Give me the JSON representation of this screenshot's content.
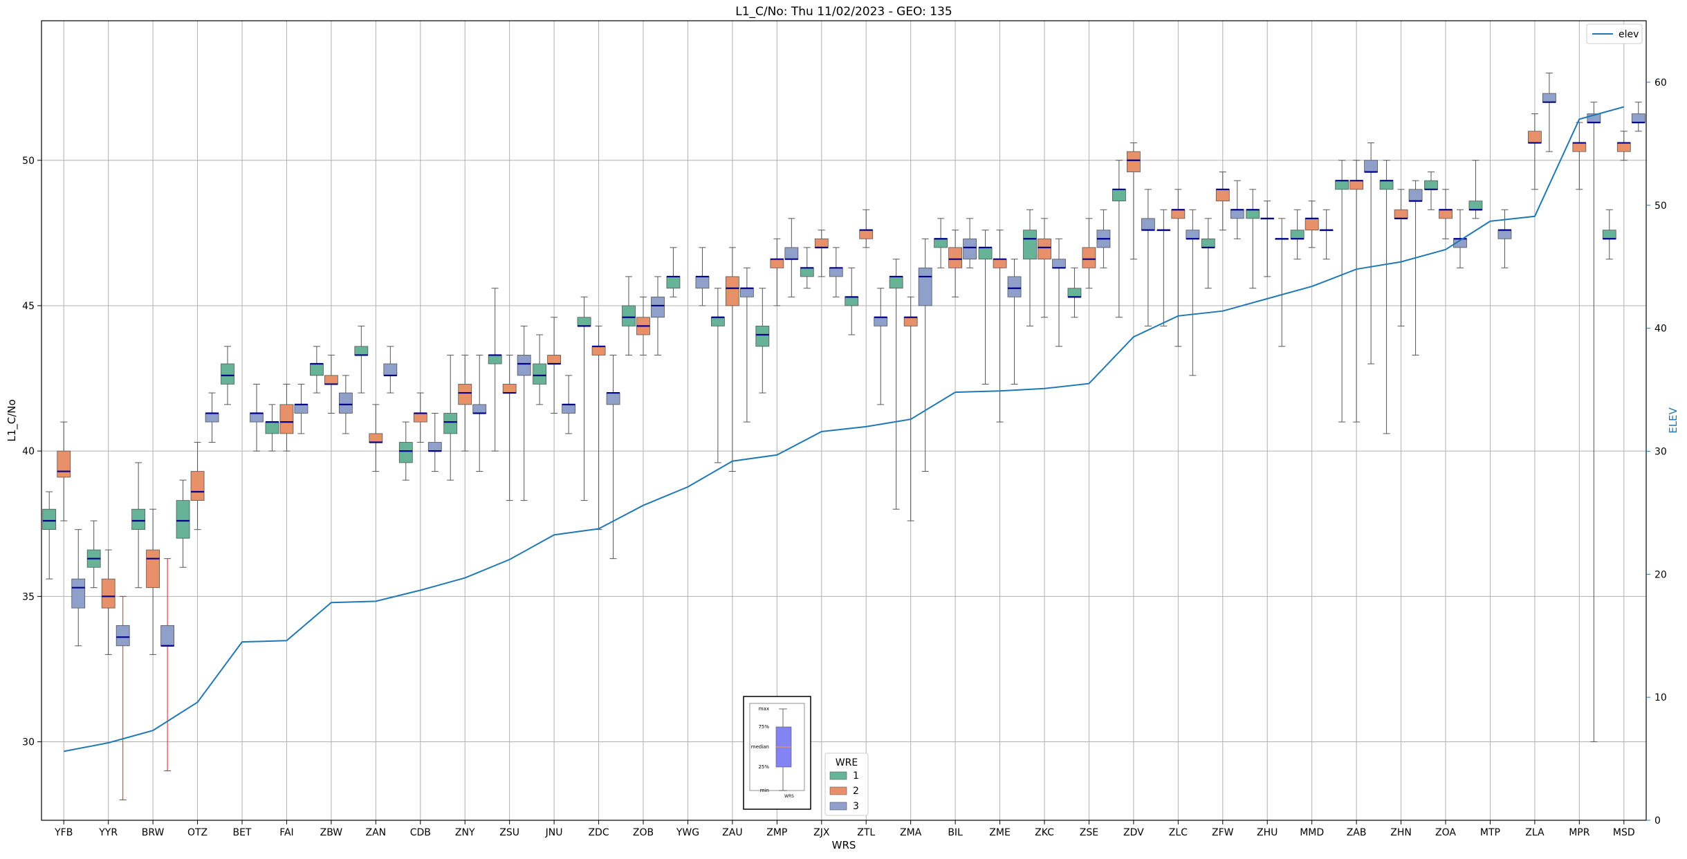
{
  "chart_data": {
    "type": "box",
    "title": "L1_C/No: Thu 11/02/2023 - GEO: 135",
    "xlabel": "WRS",
    "ylabel": "L1_C/No",
    "ylabel_right": "ELEV",
    "ylim": [
      27.3,
      54.8
    ],
    "ylim_right": [
      0,
      65
    ],
    "yticks": [
      30,
      35,
      40,
      45,
      50
    ],
    "yticks_right": [
      0,
      10,
      20,
      30,
      40,
      50,
      60
    ],
    "grid": true,
    "categories": [
      "YFB",
      "YYR",
      "BRW",
      "OTZ",
      "BET",
      "FAI",
      "ZBW",
      "ZAN",
      "CDB",
      "ZNY",
      "ZSU",
      "JNU",
      "ZDC",
      "ZOB",
      "YWG",
      "ZAU",
      "ZMP",
      "ZJX",
      "ZTL",
      "ZMA",
      "BIL",
      "ZME",
      "ZKC",
      "ZSE",
      "ZDV",
      "ZLC",
      "ZFW",
      "ZHU",
      "MMD",
      "ZAB",
      "ZHN",
      "ZOA",
      "MTP",
      "ZLA",
      "MPR",
      "MSD"
    ],
    "legend_box": {
      "title": "WRE",
      "placement": "bottom-center",
      "entries": [
        {
          "label": "1",
          "color": "#66b398"
        },
        {
          "label": "2",
          "color": "#e8906a"
        },
        {
          "label": "3",
          "color": "#8e9fc9"
        }
      ]
    },
    "legend_line": {
      "label": "elev",
      "color": "#1f77b4",
      "placement": "top-right"
    },
    "key_labels": [
      "max",
      "75%",
      "median",
      "25%",
      "min",
      "WRS"
    ],
    "boxes": [
      {
        "wrs": "YFB",
        "wre": 1,
        "min": 35.6,
        "q1": 37.3,
        "median": 37.6,
        "q3": 38.0,
        "max": 38.6
      },
      {
        "wrs": "YFB",
        "wre": 2,
        "min": 37.6,
        "q1": 39.1,
        "median": 39.3,
        "q3": 40.0,
        "max": 41.0
      },
      {
        "wrs": "YFB",
        "wre": 3,
        "min": 33.3,
        "q1": 34.6,
        "median": 35.3,
        "q3": 35.6,
        "max": 37.3
      },
      {
        "wrs": "YYR",
        "wre": 1,
        "min": 35.3,
        "q1": 36.0,
        "median": 36.3,
        "q3": 36.6,
        "max": 37.6
      },
      {
        "wrs": "YYR",
        "wre": 2,
        "min": 33.0,
        "q1": 34.6,
        "median": 35.0,
        "q3": 35.6,
        "max": 36.6
      },
      {
        "wrs": "YYR",
        "wre": 3,
        "min": 28.0,
        "q1": 33.3,
        "median": 33.6,
        "q3": 34.0,
        "max": 35.0
      },
      {
        "wrs": "BRW",
        "wre": 1,
        "min": 35.3,
        "q1": 37.3,
        "median": 37.6,
        "q3": 38.0,
        "max": 39.6
      },
      {
        "wrs": "BRW",
        "wre": 2,
        "min": 33.0,
        "q1": 35.3,
        "median": 36.3,
        "q3": 36.6,
        "max": 38.0
      },
      {
        "wrs": "BRW",
        "wre": 3,
        "min": 29.0,
        "q1": 33.3,
        "median": 33.3,
        "q3": 34.0,
        "max": 36.3
      },
      {
        "wrs": "OTZ",
        "wre": 1,
        "min": 36.0,
        "q1": 37.0,
        "median": 37.6,
        "q3": 38.3,
        "max": 39.0
      },
      {
        "wrs": "OTZ",
        "wre": 2,
        "min": 37.3,
        "q1": 38.3,
        "median": 38.6,
        "q3": 39.3,
        "max": 40.3
      },
      {
        "wrs": "OTZ",
        "wre": 3,
        "min": 40.3,
        "q1": 41.0,
        "median": 41.3,
        "q3": 41.3,
        "max": 42.0
      },
      {
        "wrs": "BET",
        "wre": 1,
        "min": 41.6,
        "q1": 42.3,
        "median": 42.6,
        "q3": 43.0,
        "max": 43.6
      },
      {
        "wrs": "BET",
        "wre": 3,
        "min": 40.0,
        "q1": 41.0,
        "median": 41.3,
        "q3": 41.3,
        "max": 42.3
      },
      {
        "wrs": "FAI",
        "wre": 1,
        "min": 40.0,
        "q1": 40.6,
        "median": 41.0,
        "q3": 41.0,
        "max": 41.6
      },
      {
        "wrs": "FAI",
        "wre": 2,
        "min": 40.0,
        "q1": 40.6,
        "median": 41.0,
        "q3": 41.6,
        "max": 42.3
      },
      {
        "wrs": "FAI",
        "wre": 3,
        "min": 40.6,
        "q1": 41.3,
        "median": 41.6,
        "q3": 41.6,
        "max": 42.3
      },
      {
        "wrs": "ZBW",
        "wre": 1,
        "min": 42.0,
        "q1": 42.6,
        "median": 43.0,
        "q3": 43.0,
        "max": 43.6
      },
      {
        "wrs": "ZBW",
        "wre": 2,
        "min": 41.3,
        "q1": 42.3,
        "median": 42.3,
        "q3": 42.6,
        "max": 43.3
      },
      {
        "wrs": "ZBW",
        "wre": 3,
        "min": 40.6,
        "q1": 41.3,
        "median": 41.6,
        "q3": 42.0,
        "max": 42.6
      },
      {
        "wrs": "ZAN",
        "wre": 1,
        "min": 42.0,
        "q1": 43.3,
        "median": 43.3,
        "q3": 43.6,
        "max": 44.3
      },
      {
        "wrs": "ZAN",
        "wre": 2,
        "min": 39.3,
        "q1": 40.3,
        "median": 40.3,
        "q3": 40.6,
        "max": 41.6
      },
      {
        "wrs": "ZAN",
        "wre": 3,
        "min": 42.0,
        "q1": 42.6,
        "median": 42.6,
        "q3": 43.0,
        "max": 43.6
      },
      {
        "wrs": "CDB",
        "wre": 1,
        "min": 39.0,
        "q1": 39.6,
        "median": 40.0,
        "q3": 40.3,
        "max": 41.0
      },
      {
        "wrs": "CDB",
        "wre": 2,
        "min": 40.3,
        "q1": 41.0,
        "median": 41.3,
        "q3": 41.3,
        "max": 42.0
      },
      {
        "wrs": "CDB",
        "wre": 3,
        "min": 39.3,
        "q1": 40.0,
        "median": 40.0,
        "q3": 40.3,
        "max": 41.3
      },
      {
        "wrs": "ZNY",
        "wre": 1,
        "min": 39.0,
        "q1": 40.6,
        "median": 41.0,
        "q3": 41.3,
        "max": 43.3
      },
      {
        "wrs": "ZNY",
        "wre": 2,
        "min": 40.0,
        "q1": 41.6,
        "median": 42.0,
        "q3": 42.3,
        "max": 43.3
      },
      {
        "wrs": "ZNY",
        "wre": 3,
        "min": 39.3,
        "q1": 41.3,
        "median": 41.3,
        "q3": 41.6,
        "max": 43.3
      },
      {
        "wrs": "ZSU",
        "wre": 1,
        "min": 40.0,
        "q1": 43.0,
        "median": 43.3,
        "q3": 43.3,
        "max": 45.6
      },
      {
        "wrs": "ZSU",
        "wre": 2,
        "min": 38.3,
        "q1": 42.0,
        "median": 42.0,
        "q3": 42.3,
        "max": 43.3
      },
      {
        "wrs": "ZSU",
        "wre": 3,
        "min": 38.3,
        "q1": 42.6,
        "median": 43.0,
        "q3": 43.3,
        "max": 44.3
      },
      {
        "wrs": "JNU",
        "wre": 1,
        "min": 41.6,
        "q1": 42.3,
        "median": 42.6,
        "q3": 43.0,
        "max": 44.0
      },
      {
        "wrs": "JNU",
        "wre": 2,
        "min": 41.3,
        "q1": 43.0,
        "median": 43.0,
        "q3": 43.3,
        "max": 44.6
      },
      {
        "wrs": "JNU",
        "wre": 3,
        "min": 40.6,
        "q1": 41.3,
        "median": 41.6,
        "q3": 41.6,
        "max": 42.6
      },
      {
        "wrs": "ZDC",
        "wre": 1,
        "min": 38.3,
        "q1": 44.3,
        "median": 44.3,
        "q3": 44.6,
        "max": 45.3
      },
      {
        "wrs": "ZDC",
        "wre": 2,
        "min": 37.3,
        "q1": 43.3,
        "median": 43.6,
        "q3": 43.6,
        "max": 44.3
      },
      {
        "wrs": "ZDC",
        "wre": 3,
        "min": 36.3,
        "q1": 41.6,
        "median": 42.0,
        "q3": 42.0,
        "max": 43.3
      },
      {
        "wrs": "ZOB",
        "wre": 1,
        "min": 43.3,
        "q1": 44.3,
        "median": 44.6,
        "q3": 45.0,
        "max": 46.0
      },
      {
        "wrs": "ZOB",
        "wre": 2,
        "min": 43.3,
        "q1": 44.0,
        "median": 44.3,
        "q3": 44.6,
        "max": 45.3
      },
      {
        "wrs": "ZOB",
        "wre": 3,
        "min": 43.3,
        "q1": 44.6,
        "median": 45.0,
        "q3": 45.3,
        "max": 46.0
      },
      {
        "wrs": "YWG",
        "wre": 1,
        "min": 45.3,
        "q1": 45.6,
        "median": 46.0,
        "q3": 46.0,
        "max": 47.0
      },
      {
        "wrs": "YWG",
        "wre": 3,
        "min": 45.0,
        "q1": 45.6,
        "median": 46.0,
        "q3": 46.0,
        "max": 47.0
      },
      {
        "wrs": "ZAU",
        "wre": 1,
        "min": 39.6,
        "q1": 44.3,
        "median": 44.6,
        "q3": 44.6,
        "max": 45.6
      },
      {
        "wrs": "ZAU",
        "wre": 2,
        "min": 39.3,
        "q1": 45.0,
        "median": 45.6,
        "q3": 46.0,
        "max": 47.0
      },
      {
        "wrs": "ZAU",
        "wre": 3,
        "min": 41.0,
        "q1": 45.3,
        "median": 45.6,
        "q3": 45.6,
        "max": 46.3
      },
      {
        "wrs": "ZMP",
        "wre": 1,
        "min": 42.0,
        "q1": 43.6,
        "median": 44.0,
        "q3": 44.3,
        "max": 45.6
      },
      {
        "wrs": "ZMP",
        "wre": 2,
        "min": 45.0,
        "q1": 46.3,
        "median": 46.6,
        "q3": 46.6,
        "max": 47.3
      },
      {
        "wrs": "ZMP",
        "wre": 3,
        "min": 45.3,
        "q1": 46.6,
        "median": 46.6,
        "q3": 47.0,
        "max": 48.0
      },
      {
        "wrs": "ZJX",
        "wre": 1,
        "min": 45.6,
        "q1": 46.0,
        "median": 46.3,
        "q3": 46.3,
        "max": 47.0
      },
      {
        "wrs": "ZJX",
        "wre": 2,
        "min": 46.0,
        "q1": 47.0,
        "median": 47.0,
        "q3": 47.3,
        "max": 47.6
      },
      {
        "wrs": "ZJX",
        "wre": 3,
        "min": 45.3,
        "q1": 46.0,
        "median": 46.3,
        "q3": 46.3,
        "max": 47.0
      },
      {
        "wrs": "ZTL",
        "wre": 1,
        "min": 44.0,
        "q1": 45.0,
        "median": 45.3,
        "q3": 45.3,
        "max": 46.3
      },
      {
        "wrs": "ZTL",
        "wre": 2,
        "min": 47.0,
        "q1": 47.3,
        "median": 47.6,
        "q3": 47.6,
        "max": 48.3
      },
      {
        "wrs": "ZTL",
        "wre": 3,
        "min": 41.6,
        "q1": 44.3,
        "median": 44.6,
        "q3": 44.6,
        "max": 45.6
      },
      {
        "wrs": "ZMA",
        "wre": 1,
        "min": 38.0,
        "q1": 45.6,
        "median": 46.0,
        "q3": 46.0,
        "max": 46.6
      },
      {
        "wrs": "ZMA",
        "wre": 2,
        "min": 37.6,
        "q1": 44.3,
        "median": 44.6,
        "q3": 44.6,
        "max": 45.3
      },
      {
        "wrs": "ZMA",
        "wre": 3,
        "min": 39.3,
        "q1": 45.0,
        "median": 46.0,
        "q3": 46.3,
        "max": 47.3
      },
      {
        "wrs": "BIL",
        "wre": 1,
        "min": 46.3,
        "q1": 47.0,
        "median": 47.3,
        "q3": 47.3,
        "max": 48.0
      },
      {
        "wrs": "BIL",
        "wre": 2,
        "min": 45.3,
        "q1": 46.3,
        "median": 46.6,
        "q3": 47.0,
        "max": 47.6
      },
      {
        "wrs": "BIL",
        "wre": 3,
        "min": 46.3,
        "q1": 46.6,
        "median": 47.0,
        "q3": 47.3,
        "max": 48.0
      },
      {
        "wrs": "ZME",
        "wre": 1,
        "min": 42.3,
        "q1": 46.6,
        "median": 47.0,
        "q3": 47.0,
        "max": 47.6
      },
      {
        "wrs": "ZME",
        "wre": 2,
        "min": 41.0,
        "q1": 46.3,
        "median": 46.6,
        "q3": 46.6,
        "max": 47.6
      },
      {
        "wrs": "ZME",
        "wre": 3,
        "min": 42.3,
        "q1": 45.3,
        "median": 45.6,
        "q3": 46.0,
        "max": 46.6
      },
      {
        "wrs": "ZKC",
        "wre": 1,
        "min": 44.3,
        "q1": 46.6,
        "median": 47.3,
        "q3": 47.6,
        "max": 48.3
      },
      {
        "wrs": "ZKC",
        "wre": 2,
        "min": 44.6,
        "q1": 46.6,
        "median": 47.0,
        "q3": 47.3,
        "max": 48.0
      },
      {
        "wrs": "ZKC",
        "wre": 3,
        "min": 43.6,
        "q1": 46.3,
        "median": 46.3,
        "q3": 46.6,
        "max": 47.3
      },
      {
        "wrs": "ZSE",
        "wre": 1,
        "min": 44.6,
        "q1": 45.3,
        "median": 45.3,
        "q3": 45.6,
        "max": 46.3
      },
      {
        "wrs": "ZSE",
        "wre": 2,
        "min": 45.6,
        "q1": 46.3,
        "median": 46.6,
        "q3": 47.0,
        "max": 48.0
      },
      {
        "wrs": "ZSE",
        "wre": 3,
        "min": 46.3,
        "q1": 47.0,
        "median": 47.3,
        "q3": 47.6,
        "max": 48.3
      },
      {
        "wrs": "ZDV",
        "wre": 1,
        "min": 44.6,
        "q1": 48.6,
        "median": 49.0,
        "q3": 49.0,
        "max": 50.0
      },
      {
        "wrs": "ZDV",
        "wre": 2,
        "min": 46.6,
        "q1": 49.6,
        "median": 50.0,
        "q3": 50.3,
        "max": 50.6
      },
      {
        "wrs": "ZDV",
        "wre": 3,
        "min": 44.3,
        "q1": 47.6,
        "median": 47.6,
        "q3": 48.0,
        "max": 49.0
      },
      {
        "wrs": "ZLC",
        "wre": 1,
        "min": 44.3,
        "q1": 47.6,
        "median": 47.6,
        "q3": 47.6,
        "max": 48.3
      },
      {
        "wrs": "ZLC",
        "wre": 2,
        "min": 43.6,
        "q1": 48.0,
        "median": 48.3,
        "q3": 48.3,
        "max": 49.0
      },
      {
        "wrs": "ZLC",
        "wre": 3,
        "min": 42.6,
        "q1": 47.3,
        "median": 47.3,
        "q3": 47.6,
        "max": 48.3
      },
      {
        "wrs": "ZFW",
        "wre": 1,
        "min": 45.6,
        "q1": 47.0,
        "median": 47.0,
        "q3": 47.3,
        "max": 48.0
      },
      {
        "wrs": "ZFW",
        "wre": 2,
        "min": 47.6,
        "q1": 48.6,
        "median": 49.0,
        "q3": 49.0,
        "max": 49.6
      },
      {
        "wrs": "ZFW",
        "wre": 3,
        "min": 47.3,
        "q1": 48.0,
        "median": 48.3,
        "q3": 48.3,
        "max": 49.3
      },
      {
        "wrs": "ZHU",
        "wre": 1,
        "min": 45.6,
        "q1": 48.0,
        "median": 48.3,
        "q3": 48.3,
        "max": 49.0
      },
      {
        "wrs": "ZHU",
        "wre": 2,
        "min": 46.0,
        "q1": 48.0,
        "median": 48.0,
        "q3": 48.0,
        "max": 48.6
      },
      {
        "wrs": "ZHU",
        "wre": 3,
        "min": 43.6,
        "q1": 47.3,
        "median": 47.3,
        "q3": 47.3,
        "max": 48.0
      },
      {
        "wrs": "MMD",
        "wre": 1,
        "min": 46.6,
        "q1": 47.3,
        "median": 47.3,
        "q3": 47.6,
        "max": 48.3
      },
      {
        "wrs": "MMD",
        "wre": 2,
        "min": 47.0,
        "q1": 47.6,
        "median": 48.0,
        "q3": 48.0,
        "max": 48.6
      },
      {
        "wrs": "MMD",
        "wre": 3,
        "min": 46.6,
        "q1": 47.6,
        "median": 47.6,
        "q3": 47.6,
        "max": 48.3
      },
      {
        "wrs": "ZAB",
        "wre": 1,
        "min": 41.0,
        "q1": 49.0,
        "median": 49.3,
        "q3": 49.3,
        "max": 50.0
      },
      {
        "wrs": "ZAB",
        "wre": 2,
        "min": 41.0,
        "q1": 49.0,
        "median": 49.3,
        "q3": 49.3,
        "max": 50.0
      },
      {
        "wrs": "ZAB",
        "wre": 3,
        "min": 43.0,
        "q1": 49.6,
        "median": 49.6,
        "q3": 50.0,
        "max": 50.6
      },
      {
        "wrs": "ZHN",
        "wre": 1,
        "min": 40.6,
        "q1": 49.0,
        "median": 49.3,
        "q3": 49.3,
        "max": 50.0
      },
      {
        "wrs": "ZHN",
        "wre": 2,
        "min": 44.3,
        "q1": 48.0,
        "median": 48.0,
        "q3": 48.3,
        "max": 49.0
      },
      {
        "wrs": "ZHN",
        "wre": 3,
        "min": 43.3,
        "q1": 48.6,
        "median": 48.6,
        "q3": 49.0,
        "max": 49.3
      },
      {
        "wrs": "ZOA",
        "wre": 1,
        "min": 48.3,
        "q1": 49.0,
        "median": 49.0,
        "q3": 49.3,
        "max": 49.6
      },
      {
        "wrs": "ZOA",
        "wre": 2,
        "min": 47.3,
        "q1": 48.0,
        "median": 48.3,
        "q3": 48.3,
        "max": 49.0
      },
      {
        "wrs": "ZOA",
        "wre": 3,
        "min": 46.3,
        "q1": 47.0,
        "median": 47.3,
        "q3": 47.3,
        "max": 48.3
      },
      {
        "wrs": "MTP",
        "wre": 1,
        "min": 48.0,
        "q1": 48.3,
        "median": 48.3,
        "q3": 48.6,
        "max": 50.0
      },
      {
        "wrs": "MTP",
        "wre": 3,
        "min": 46.3,
        "q1": 47.3,
        "median": 47.6,
        "q3": 47.6,
        "max": 48.3
      },
      {
        "wrs": "ZLA",
        "wre": 2,
        "min": 49.0,
        "q1": 50.6,
        "median": 50.6,
        "q3": 51.0,
        "max": 51.6
      },
      {
        "wrs": "ZLA",
        "wre": 3,
        "min": 50.3,
        "q1": 52.0,
        "median": 52.0,
        "q3": 52.3,
        "max": 53.0
      },
      {
        "wrs": "MPR",
        "wre": 2,
        "min": 49.0,
        "q1": 50.3,
        "median": 50.6,
        "q3": 50.6,
        "max": 51.3
      },
      {
        "wrs": "MPR",
        "wre": 3,
        "min": 30.0,
        "q1": 51.3,
        "median": 51.3,
        "q3": 51.6,
        "max": 52.0
      },
      {
        "wrs": "MSD",
        "wre": 1,
        "min": 46.6,
        "q1": 47.3,
        "median": 47.3,
        "q3": 47.6,
        "max": 48.3
      },
      {
        "wrs": "MSD",
        "wre": 2,
        "min": 50.0,
        "q1": 50.3,
        "median": 50.6,
        "q3": 50.6,
        "max": 51.0
      },
      {
        "wrs": "MSD",
        "wre": 3,
        "min": 51.0,
        "q1": 51.3,
        "median": 51.3,
        "q3": 51.6,
        "max": 52.0
      }
    ],
    "elev": [
      5.6,
      6.3,
      7.3,
      9.6,
      14.5,
      14.6,
      17.7,
      17.8,
      18.7,
      19.7,
      21.2,
      23.2,
      23.7,
      25.6,
      27.1,
      29.2,
      29.7,
      31.6,
      32.0,
      32.6,
      34.8,
      34.9,
      35.1,
      35.5,
      39.3,
      41.0,
      41.4,
      42.4,
      43.4,
      44.8,
      45.4,
      46.4,
      48.7,
      49.1,
      57.0,
      58.0
    ]
  }
}
